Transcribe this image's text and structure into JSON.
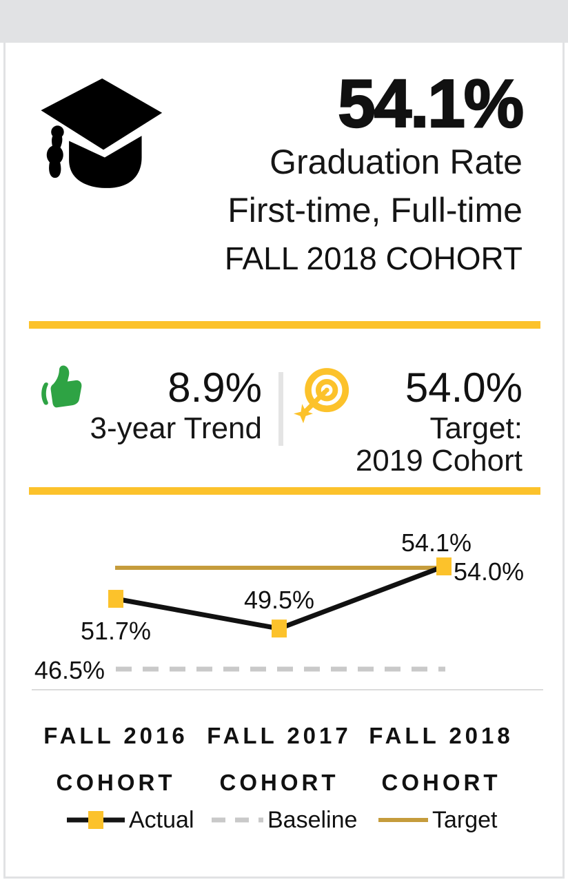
{
  "header": {
    "value": "54.1%",
    "subtitle1": "Graduation Rate",
    "subtitle2": "First-time, Full-time",
    "cohort": "FALL 2018 COHORT"
  },
  "trend": {
    "value": "8.9%",
    "label": "3-year Trend"
  },
  "target": {
    "value": "54.0%",
    "label1": "Target:",
    "label2": "2019 Cohort"
  },
  "icons": {
    "header": "graduation-cap",
    "trend": "thumbs-up",
    "target": "bullseye-with-dart"
  },
  "colors": {
    "accent_yellow": "#FCC22B",
    "target_gold": "#C59C3C",
    "trend_green": "#2EA344",
    "band_gray": "#E1E2E4",
    "baseline_gray": "#C9C9C9",
    "text_black": "#141414"
  },
  "chart_data": {
    "type": "line",
    "categories": [
      "FALL 2016 COHORT",
      "FALL 2017 COHORT",
      "FALL 2018 COHORT"
    ],
    "x_labels": [
      {
        "top": "FALL 2016",
        "bottom": "COHORT"
      },
      {
        "top": "FALL 2017",
        "bottom": "COHORT"
      },
      {
        "top": "FALL 2018",
        "bottom": "COHORT"
      }
    ],
    "series": [
      {
        "name": "Actual",
        "values": [
          51.7,
          49.5,
          54.1
        ],
        "labels": [
          "51.7%",
          "49.5%",
          "54.1%"
        ],
        "style": "solid-black-yellow-square-markers"
      },
      {
        "name": "Baseline",
        "values": [
          46.5,
          46.5,
          46.5
        ],
        "label": "46.5%",
        "style": "dashed-gray"
      },
      {
        "name": "Target",
        "values": [
          54.0,
          54.0,
          54.0
        ],
        "label": "54.0%",
        "style": "solid-gold"
      }
    ],
    "ylim": [
      44,
      57
    ],
    "grid": false,
    "legend": [
      "Actual",
      "Baseline",
      "Target"
    ],
    "legend_position": "bottom"
  }
}
